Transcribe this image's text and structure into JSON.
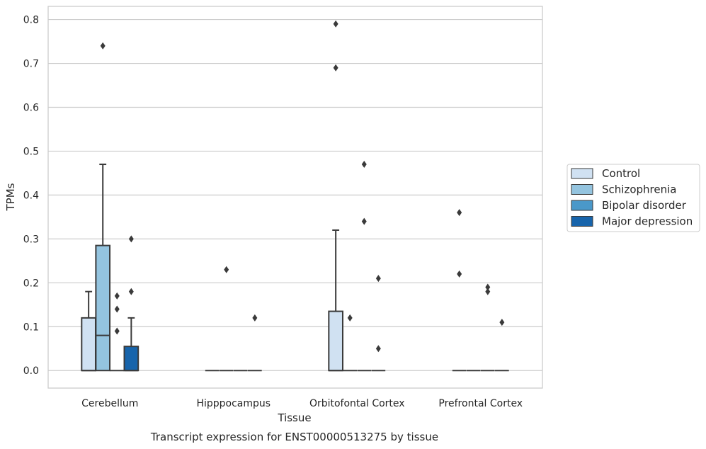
{
  "chart_data": {
    "type": "box",
    "title": "",
    "caption": "Transcript expression for ENST00000513275 by tissue",
    "xlabel": "Tissue",
    "ylabel": "TPMs",
    "ylim": [
      -0.04,
      0.83
    ],
    "yticks": [
      0.0,
      0.1,
      0.2,
      0.3,
      0.4,
      0.5,
      0.6,
      0.7,
      0.8
    ],
    "ytick_labels": [
      "0.0",
      "0.1",
      "0.2",
      "0.3",
      "0.4",
      "0.5",
      "0.6",
      "0.7",
      "0.8"
    ],
    "grid": "horizontal",
    "legend_position": "right",
    "categories": [
      "Cerebellum",
      "Hipppocampus",
      "Orbitofontal Cortex",
      "Prefrontal Cortex"
    ],
    "series": [
      {
        "name": "Control",
        "color": "#d0e1f2",
        "boxes": [
          {
            "q1": 0.0,
            "median": 0.0,
            "q3": 0.12,
            "whisker_low": 0.0,
            "whisker_high": 0.18,
            "outliers": []
          },
          {
            "q1": 0.0,
            "median": 0.0,
            "q3": 0.0,
            "whisker_low": 0.0,
            "whisker_high": 0.0,
            "outliers": []
          },
          {
            "q1": 0.0,
            "median": 0.0,
            "q3": 0.135,
            "whisker_low": 0.0,
            "whisker_high": 0.32,
            "outliers": [
              0.69,
              0.79
            ]
          },
          {
            "q1": 0.0,
            "median": 0.0,
            "q3": 0.0,
            "whisker_low": 0.0,
            "whisker_high": 0.0,
            "outliers": [
              0.22,
              0.36
            ]
          }
        ]
      },
      {
        "name": "Schizophrenia",
        "color": "#94c4df",
        "boxes": [
          {
            "q1": 0.0,
            "median": 0.08,
            "q3": 0.285,
            "whisker_low": 0.0,
            "whisker_high": 0.47,
            "outliers": [
              0.74
            ]
          },
          {
            "q1": 0.0,
            "median": 0.0,
            "q3": 0.0,
            "whisker_low": 0.0,
            "whisker_high": 0.0,
            "outliers": [
              0.23
            ]
          },
          {
            "q1": 0.0,
            "median": 0.0,
            "q3": 0.0,
            "whisker_low": 0.0,
            "whisker_high": 0.0,
            "outliers": [
              0.12
            ]
          },
          {
            "q1": 0.0,
            "median": 0.0,
            "q3": 0.0,
            "whisker_low": 0.0,
            "whisker_high": 0.0,
            "outliers": []
          }
        ]
      },
      {
        "name": "Bipolar disorder",
        "color": "#4a98c9",
        "boxes": [
          {
            "q1": 0.0,
            "median": 0.0,
            "q3": 0.0,
            "whisker_low": 0.0,
            "whisker_high": 0.0,
            "outliers": [
              0.09,
              0.14,
              0.17
            ]
          },
          {
            "q1": 0.0,
            "median": 0.0,
            "q3": 0.0,
            "whisker_low": 0.0,
            "whisker_high": 0.0,
            "outliers": []
          },
          {
            "q1": 0.0,
            "median": 0.0,
            "q3": 0.0,
            "whisker_low": 0.0,
            "whisker_high": 0.0,
            "outliers": [
              0.34,
              0.47
            ]
          },
          {
            "q1": 0.0,
            "median": 0.0,
            "q3": 0.0,
            "whisker_low": 0.0,
            "whisker_high": 0.0,
            "outliers": [
              0.18,
              0.19
            ]
          }
        ]
      },
      {
        "name": "Major depression",
        "color": "#1764ab",
        "boxes": [
          {
            "q1": 0.0,
            "median": 0.0,
            "q3": 0.055,
            "whisker_low": 0.0,
            "whisker_high": 0.12,
            "outliers": [
              0.18,
              0.3
            ]
          },
          {
            "q1": 0.0,
            "median": 0.0,
            "q3": 0.0,
            "whisker_low": 0.0,
            "whisker_high": 0.0,
            "outliers": [
              0.12
            ]
          },
          {
            "q1": 0.0,
            "median": 0.0,
            "q3": 0.0,
            "whisker_low": 0.0,
            "whisker_high": 0.0,
            "outliers": [
              0.05,
              0.21
            ]
          },
          {
            "q1": 0.0,
            "median": 0.0,
            "q3": 0.0,
            "whisker_low": 0.0,
            "whisker_high": 0.0,
            "outliers": [
              0.11
            ]
          }
        ]
      }
    ]
  }
}
